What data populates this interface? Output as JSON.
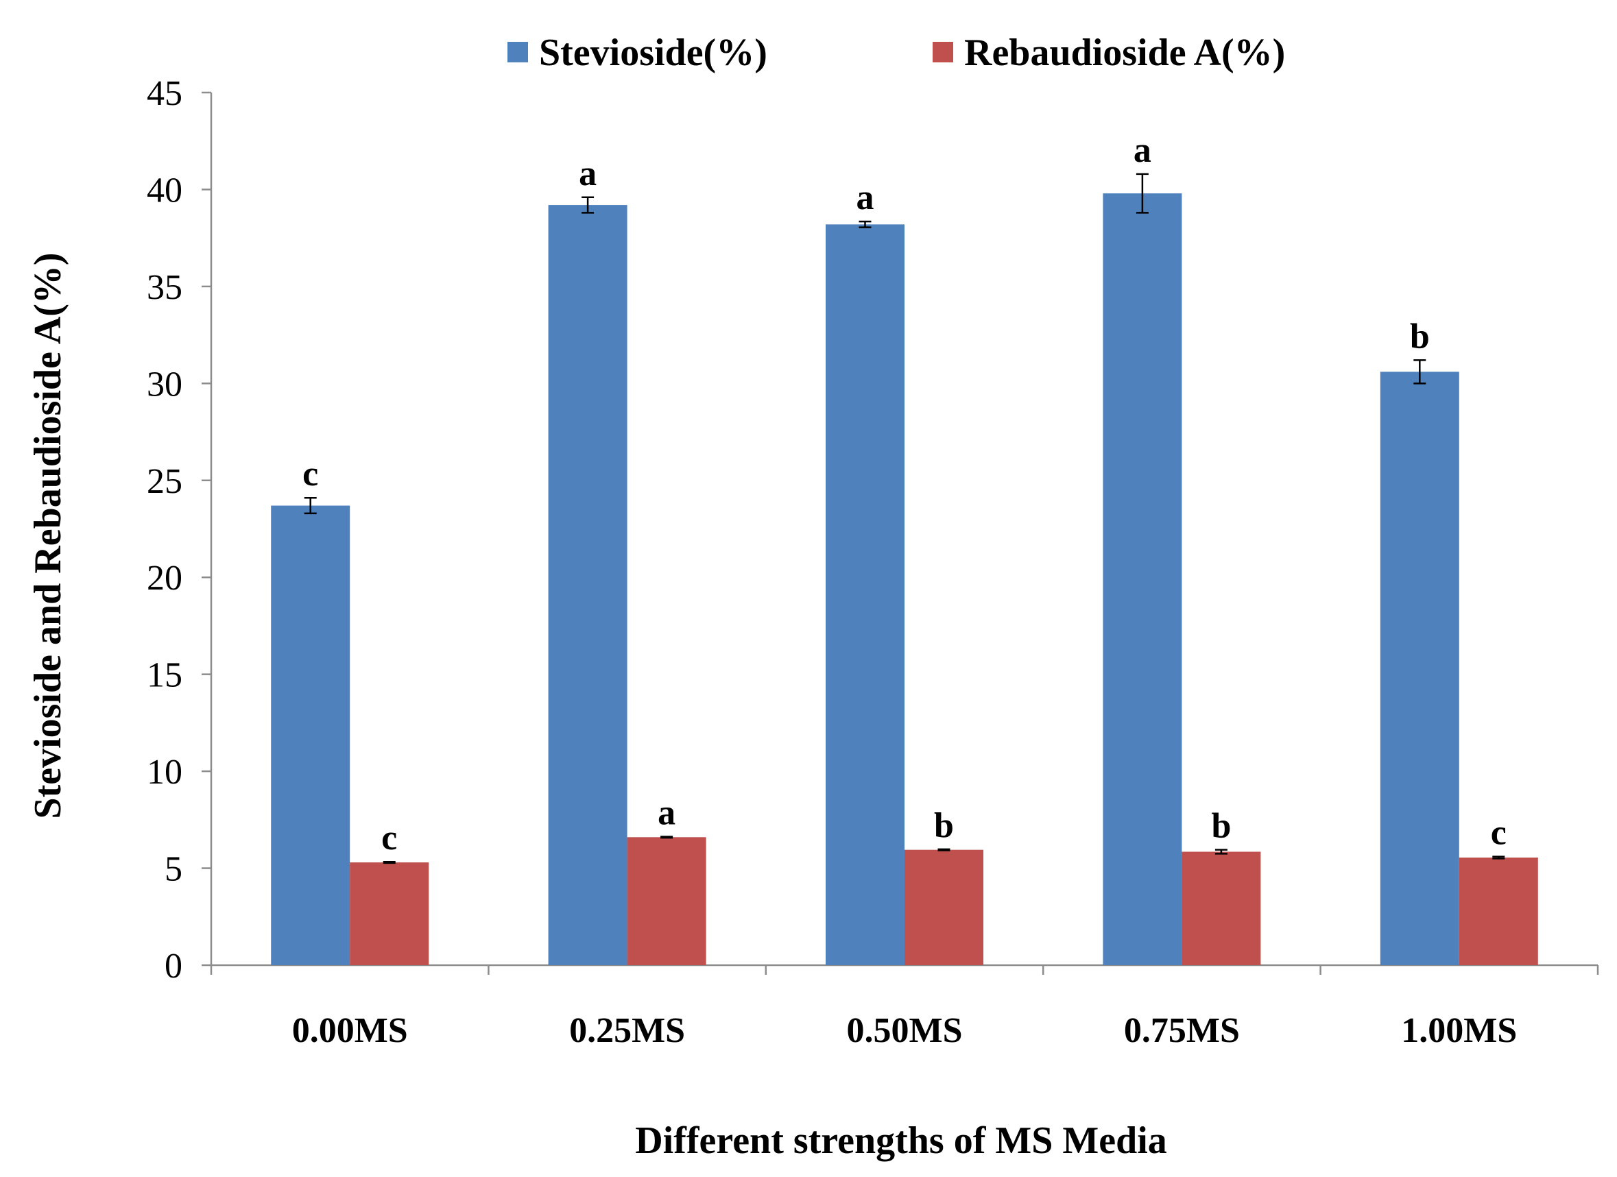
{
  "chart_data": {
    "type": "bar",
    "title": "",
    "xlabel": "Different strengths of MS Media",
    "ylabel": "Stevioside and Rebaudioside A(%)",
    "ylim": [
      0,
      45
    ],
    "yticks": [
      0,
      5,
      10,
      15,
      20,
      25,
      30,
      35,
      40,
      45
    ],
    "grid": false,
    "legend_position": "top-center",
    "categories": [
      "0.00MS",
      "0.25MS",
      "0.50MS",
      "0.75MS",
      "1.00MS"
    ],
    "series": [
      {
        "name": "Stevioside(%)",
        "color": "#4f81bd",
        "values": [
          23.7,
          39.2,
          38.2,
          39.8,
          30.6
        ],
        "errors": [
          0.4,
          0.4,
          0.15,
          1.0,
          0.6
        ],
        "labels": [
          "c",
          "a",
          "a",
          "a",
          "b"
        ]
      },
      {
        "name": "Rebaudioside A(%)",
        "color": "#c0504d",
        "values": [
          5.3,
          6.6,
          5.95,
          5.85,
          5.55
        ],
        "errors": [
          0.03,
          0.03,
          0.03,
          0.1,
          0.05
        ],
        "labels": [
          "c",
          "a",
          "b",
          "b",
          "c"
        ]
      }
    ]
  }
}
